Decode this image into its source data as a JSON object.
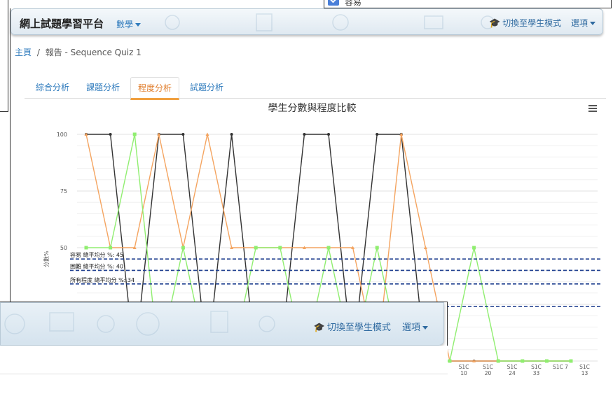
{
  "background_window": {
    "checkbox_label": "容易"
  },
  "navbar": {
    "brand": "網上試題學習平台",
    "subject_dropdown": "數學",
    "switch_mode": "切換至學生模式",
    "options": "選項"
  },
  "breadcrumb": {
    "home": "主頁",
    "separator": "/",
    "current": "報告 - Sequence Quiz 1"
  },
  "tabs": [
    {
      "label": "綜合分析",
      "active": false
    },
    {
      "label": "課題分析",
      "active": false
    },
    {
      "label": "程度分析",
      "active": true
    },
    {
      "label": "試題分析",
      "active": false
    }
  ],
  "chart_data": {
    "type": "line",
    "title": "學生分數與程度比較",
    "ylabel": "分數%",
    "ylim": [
      0,
      100
    ],
    "yticks": [
      50,
      75,
      100
    ],
    "visible_yticks": [
      "100",
      "75",
      "50"
    ],
    "visible_x_labels": [
      [
        "S1C",
        "10"
      ],
      [
        "S1C",
        "20"
      ],
      [
        "S1C",
        "24"
      ],
      [
        "S1C",
        "33"
      ],
      [
        "S1C 7",
        ""
      ],
      [
        "S1C",
        "13"
      ]
    ],
    "series": [
      {
        "color": "#333333",
        "values": [
          100,
          100,
          0,
          100,
          100,
          0,
          100,
          0,
          0,
          100,
          100,
          0,
          100,
          100,
          0,
          0,
          0,
          0,
          0,
          0,
          0
        ]
      },
      {
        "color": "#f4a460",
        "values": [
          100,
          50,
          50,
          100,
          50,
          100,
          50,
          50,
          50,
          50,
          50,
          50,
          0,
          100,
          50,
          0,
          0,
          0,
          0,
          0,
          0
        ]
      },
      {
        "color": "#90ee70",
        "values": [
          50,
          50,
          100,
          0,
          50,
          0,
          0,
          50,
          50,
          0,
          50,
          0,
          50,
          0,
          0,
          0,
          50,
          0,
          0,
          0,
          0
        ]
      }
    ],
    "reference_lines": [
      {
        "label": "容易 總平均分 %: 45",
        "value": 45,
        "color": "#1f3f8f"
      },
      {
        "label": "困難 總平均分 %: 40",
        "value": 40,
        "color": "#1f3f8f"
      },
      {
        "label": "所有程度 總平均分 %: 34",
        "value": 34,
        "color": "#1f3f8f"
      },
      {
        "label": "",
        "value": 24,
        "color": "#1f3f8f"
      }
    ]
  },
  "front_window": {
    "switch_mode": "切換至學生模式",
    "options": "選項"
  },
  "colors": {
    "nav_link": "#2f7bbd",
    "active_tab": "#e07c2a",
    "reference_line": "#1f3f8f"
  }
}
